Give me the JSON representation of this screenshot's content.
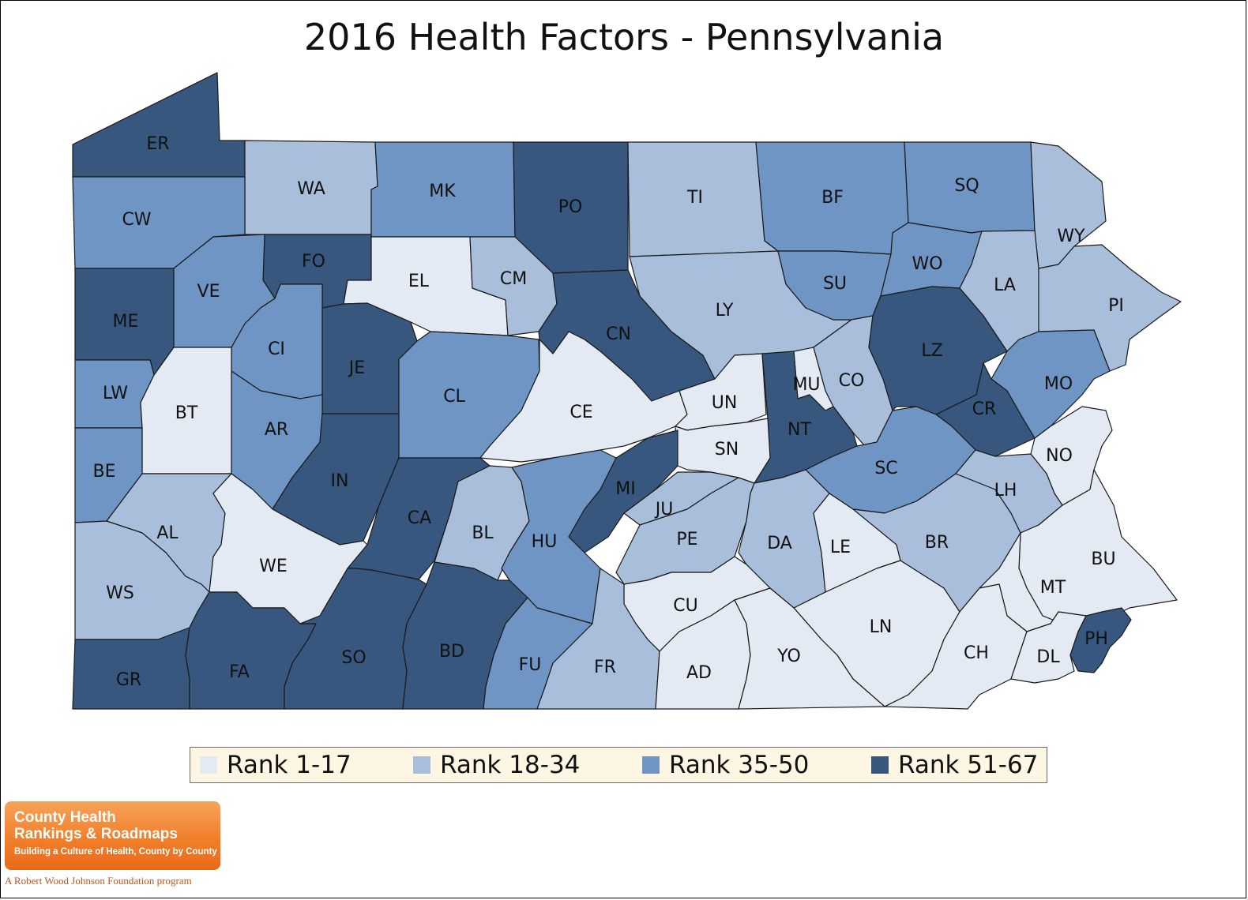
{
  "title": "2016 Health Factors - Pennsylvania",
  "colors": {
    "rank_1_17": "#e3eaf4",
    "rank_18_34": "#a9bedb",
    "rank_35_50": "#6f95c4",
    "rank_51_67": "#38577f"
  },
  "legend": [
    {
      "label": "Rank 1-17",
      "color": "#e3eaf4"
    },
    {
      "label": "Rank 18-34",
      "color": "#a9bedb"
    },
    {
      "label": "Rank 35-50",
      "color": "#6f95c4"
    },
    {
      "label": "Rank 51-67",
      "color": "#38577f"
    }
  ],
  "counties": [
    {
      "code": "ER",
      "tier": 4
    },
    {
      "code": "WA",
      "tier": 2
    },
    {
      "code": "MK",
      "tier": 3
    },
    {
      "code": "PO",
      "tier": 4
    },
    {
      "code": "TI",
      "tier": 2
    },
    {
      "code": "BF",
      "tier": 3
    },
    {
      "code": "SQ",
      "tier": 3
    },
    {
      "code": "WY",
      "tier": 2
    },
    {
      "code": "CW",
      "tier": 3
    },
    {
      "code": "FO",
      "tier": 4
    },
    {
      "code": "EL",
      "tier": 1
    },
    {
      "code": "CM",
      "tier": 2
    },
    {
      "code": "VE",
      "tier": 3
    },
    {
      "code": "ME",
      "tier": 4
    },
    {
      "code": "CI",
      "tier": 3
    },
    {
      "code": "JE",
      "tier": 4
    },
    {
      "code": "CN",
      "tier": 4
    },
    {
      "code": "LY",
      "tier": 2
    },
    {
      "code": "SU",
      "tier": 3
    },
    {
      "code": "WO",
      "tier": 3
    },
    {
      "code": "LA",
      "tier": 2
    },
    {
      "code": "PI",
      "tier": 2
    },
    {
      "code": "LW",
      "tier": 3
    },
    {
      "code": "BT",
      "tier": 1
    },
    {
      "code": "AR",
      "tier": 3
    },
    {
      "code": "CL",
      "tier": 3
    },
    {
      "code": "CE",
      "tier": 1
    },
    {
      "code": "UN",
      "tier": 1
    },
    {
      "code": "MU",
      "tier": 1
    },
    {
      "code": "CO",
      "tier": 2
    },
    {
      "code": "LZ",
      "tier": 4
    },
    {
      "code": "MO",
      "tier": 3
    },
    {
      "code": "CR",
      "tier": 4
    },
    {
      "code": "NT",
      "tier": 4
    },
    {
      "code": "SN",
      "tier": 1
    },
    {
      "code": "BE",
      "tier": 3
    },
    {
      "code": "IN",
      "tier": 4
    },
    {
      "code": "MI",
      "tier": 4
    },
    {
      "code": "SC",
      "tier": 3
    },
    {
      "code": "NO",
      "tier": 1
    },
    {
      "code": "AL",
      "tier": 2
    },
    {
      "code": "WE",
      "tier": 1
    },
    {
      "code": "CA",
      "tier": 4
    },
    {
      "code": "BL",
      "tier": 2
    },
    {
      "code": "HU",
      "tier": 3
    },
    {
      "code": "JU",
      "tier": 2
    },
    {
      "code": "PE",
      "tier": 2
    },
    {
      "code": "DA",
      "tier": 2
    },
    {
      "code": "LE",
      "tier": 1
    },
    {
      "code": "BR",
      "tier": 2
    },
    {
      "code": "LH",
      "tier": 2
    },
    {
      "code": "BU",
      "tier": 1
    },
    {
      "code": "WS",
      "tier": 2
    },
    {
      "code": "MT",
      "tier": 1
    },
    {
      "code": "CU",
      "tier": 1
    },
    {
      "code": "LN",
      "tier": 1
    },
    {
      "code": "GR",
      "tier": 4
    },
    {
      "code": "FA",
      "tier": 4
    },
    {
      "code": "SO",
      "tier": 4
    },
    {
      "code": "BD",
      "tier": 4
    },
    {
      "code": "FU",
      "tier": 3
    },
    {
      "code": "FR",
      "tier": 2
    },
    {
      "code": "AD",
      "tier": 1
    },
    {
      "code": "YO",
      "tier": 1
    },
    {
      "code": "CH",
      "tier": 1
    },
    {
      "code": "DL",
      "tier": 1
    },
    {
      "code": "PH",
      "tier": 4
    }
  ],
  "logo": {
    "line1": "County Health",
    "line2": "Rankings & Roadmaps",
    "tagline": "Building a Culture of Health, County by County",
    "footer": "A Robert Wood Johnson Foundation program"
  }
}
